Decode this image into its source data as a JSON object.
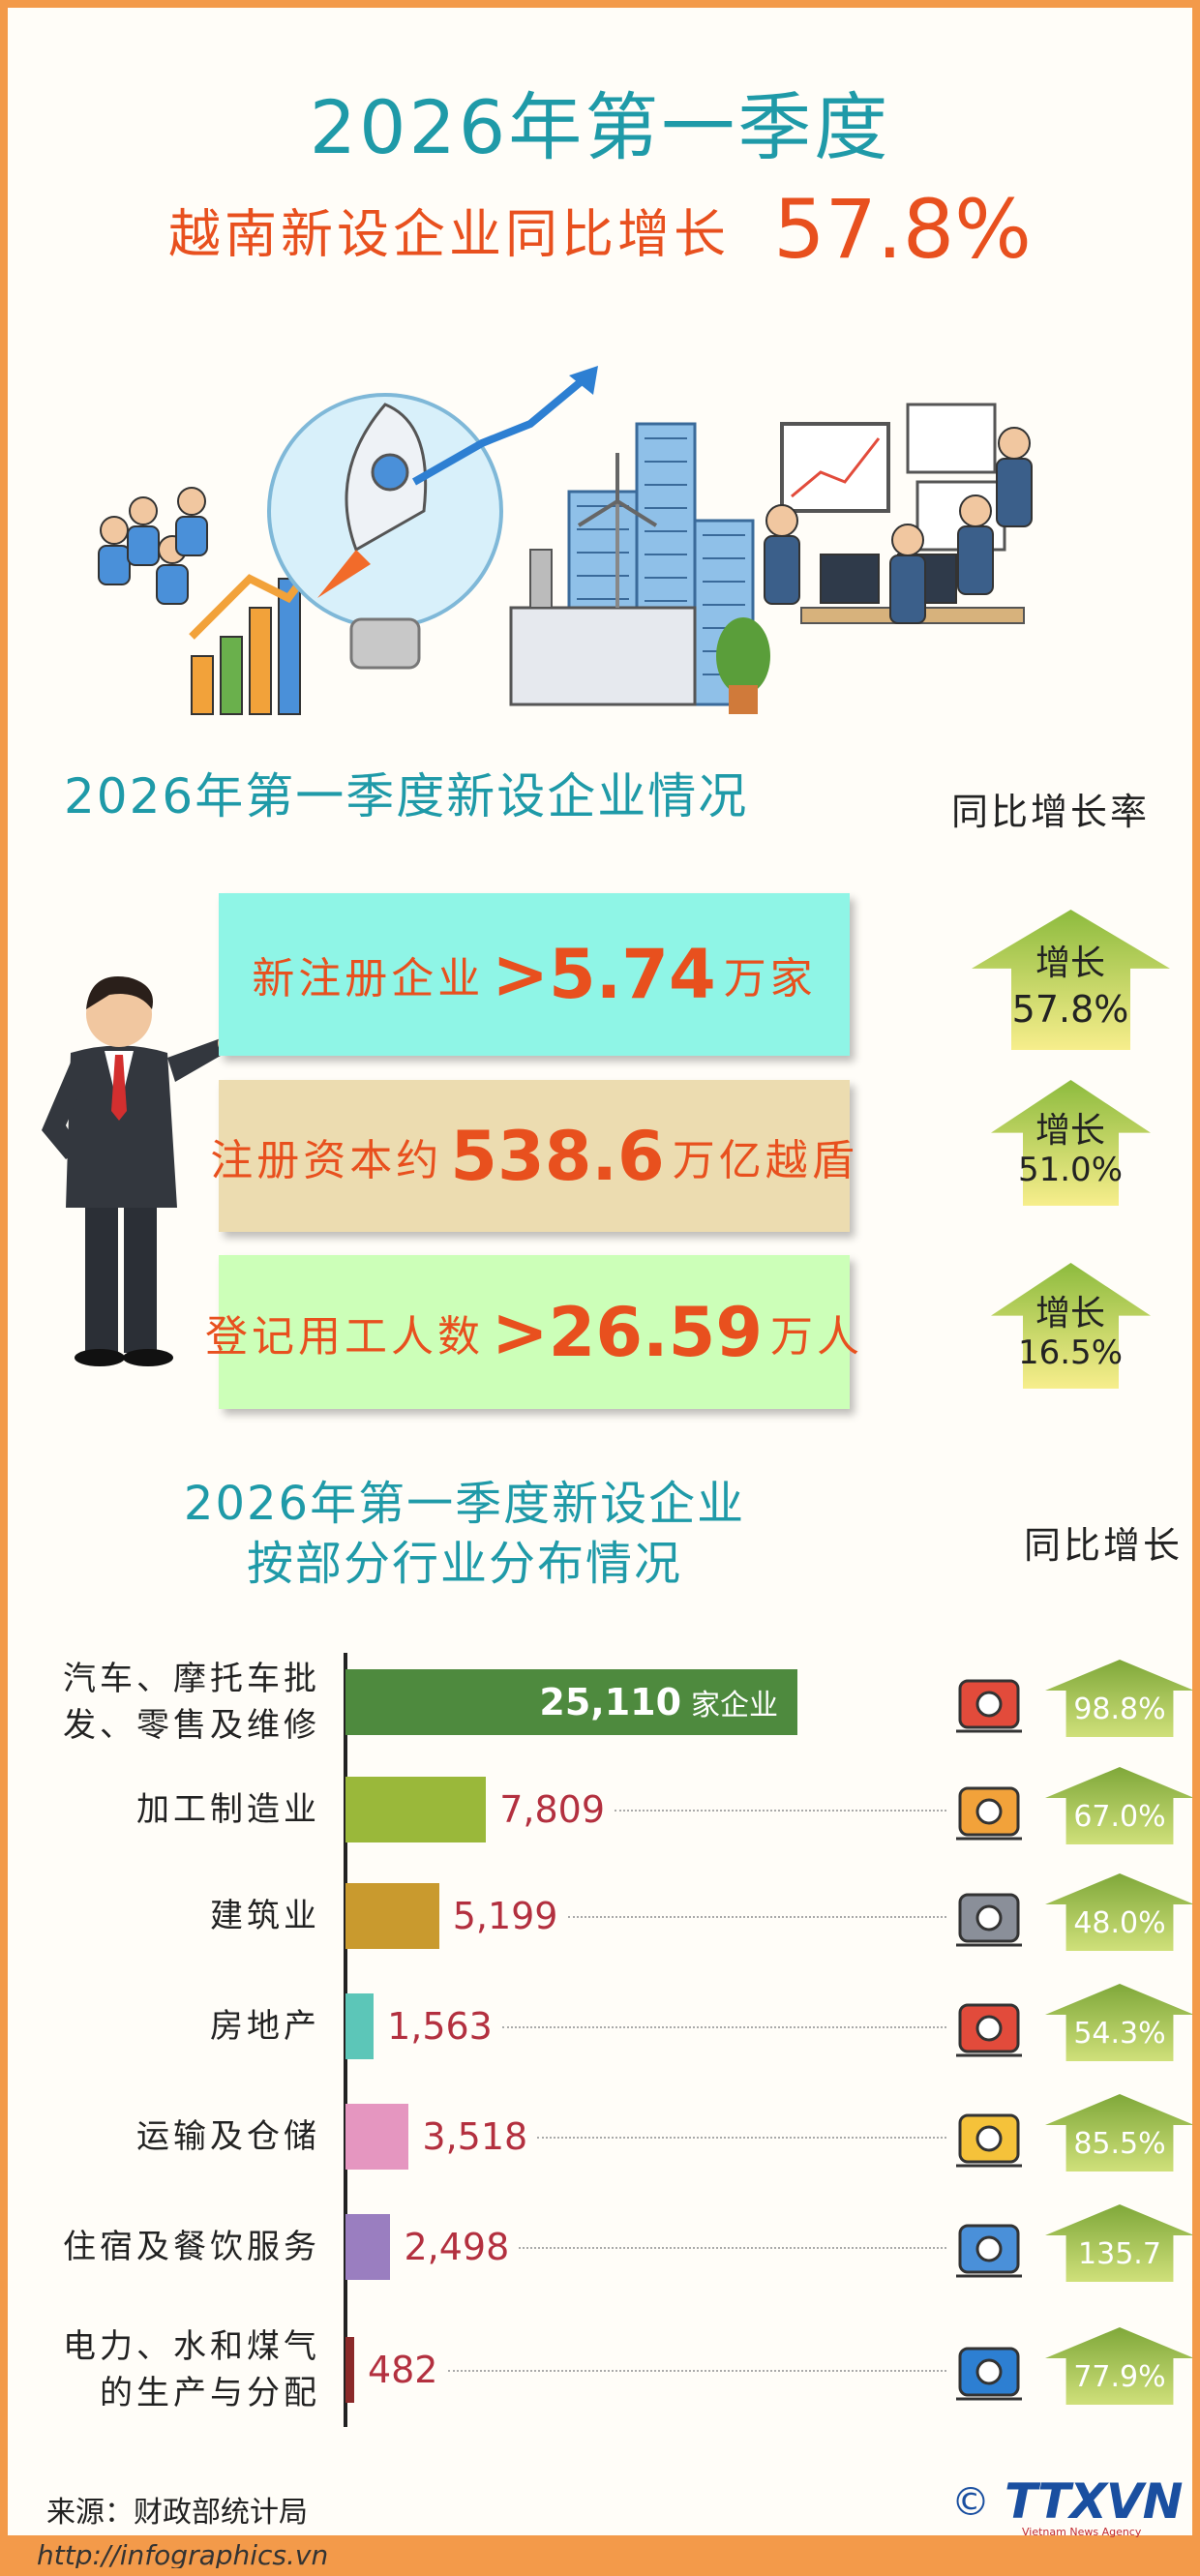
{
  "header": {
    "title": "2026年第一季度",
    "subtitle": "越南新设企业同比增长",
    "highlight": "57.8%"
  },
  "stats": {
    "title": "2026年第一季度新设企业情况",
    "growth_header": "同比增长率",
    "items": [
      {
        "label": "新注册企业",
        "value": ">5.74",
        "unit": "万家",
        "growth_label": "增长",
        "growth": "57.8%",
        "color": "#8ff5e6"
      },
      {
        "label": "注册资本约",
        "value": "538.6",
        "unit": "万亿越盾",
        "growth_label": "增长",
        "growth": "51.0%",
        "color": "#ecdcb0"
      },
      {
        "label": "登记用工人数",
        "value": ">26.59",
        "unit": "万人",
        "growth_label": "增长",
        "growth": "16.5%",
        "color": "#ccffb8"
      }
    ]
  },
  "chart_data": {
    "type": "bar",
    "orientation": "horizontal",
    "title": "2026年第一季度新设企业",
    "subtitle": "按部分行业分布情况",
    "categories": [
      "汽车、摩托车批发、零售及维修",
      "加工制造业",
      "建筑业",
      "房地产",
      "运输及仓储",
      "住宿及餐饮服务",
      "电力、水和煤气的生产与分配"
    ],
    "values": [
      25110,
      7809,
      5199,
      1563,
      3518,
      2498,
      482
    ],
    "value_labels": [
      "25,110",
      "7,809",
      "5,199",
      "1,563",
      "3,518",
      "2,498",
      "482"
    ],
    "unit_label": "家企业",
    "colors": [
      "#4e8a3e",
      "#9ab83a",
      "#c99a2e",
      "#5cc6b8",
      "#e596c0",
      "#9a7ec0",
      "#8b2a2a"
    ],
    "growth": {
      "name": "同比增长",
      "values": [
        98.8,
        67.0,
        48.0,
        54.3,
        85.5,
        135.7,
        77.9
      ],
      "value_labels": [
        "98.8%",
        "67.0%",
        "48.0%",
        "54.3%",
        "85.5%",
        "135.7",
        "77.9%"
      ]
    }
  },
  "footer": {
    "source": "来源：财政部统计局",
    "url": "http://infographics.vn",
    "copyright": "©",
    "logo": "TTXVN",
    "logo_sub": "Vietnam News Agency"
  }
}
